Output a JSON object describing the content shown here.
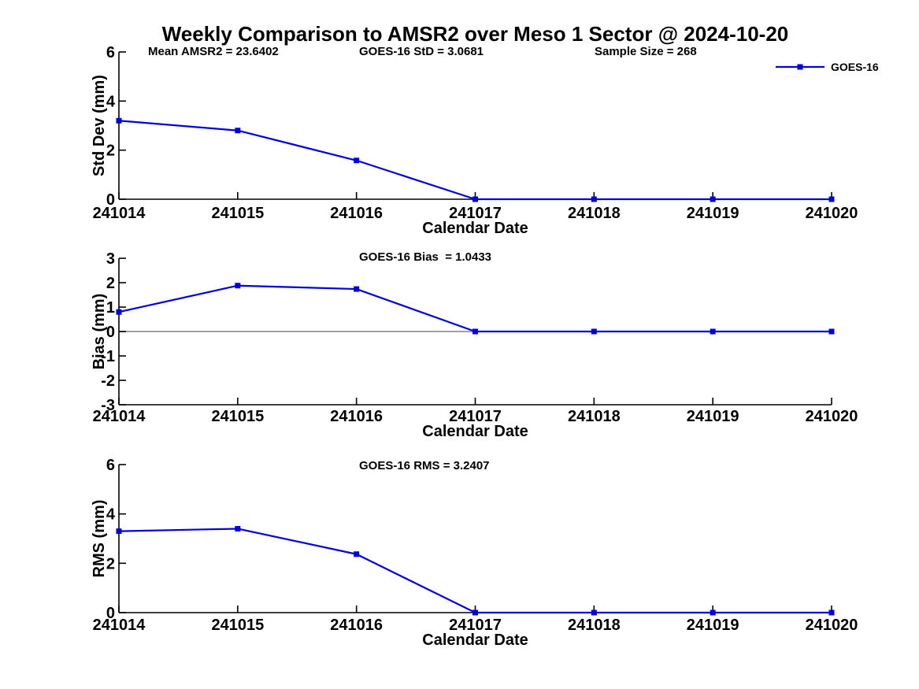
{
  "title": "Weekly Comparison to AMSR2 over Meso 1 Sector @ 2024-10-20",
  "colors": {
    "series": "#0000DD",
    "axis": "#000000",
    "zero_line": "#808080",
    "background": "#ffffff",
    "text": "#000000"
  },
  "legend": {
    "label": "GOES-16",
    "position": "top-right",
    "marker": "filled-square"
  },
  "chart_data": [
    {
      "type": "line",
      "name": "std-dev",
      "categories": [
        "241014",
        "241015",
        "241016",
        "241017",
        "241018",
        "241019",
        "241020"
      ],
      "series": [
        {
          "name": "GOES-16",
          "color": "#0000DD",
          "marker": "square",
          "values": [
            3.2,
            2.8,
            1.58,
            0,
            0,
            0,
            0
          ]
        }
      ],
      "xlabel": "Calendar Date",
      "ylabel": "Std Dev (mm)",
      "ylim": [
        0,
        6
      ],
      "yticks": [
        0,
        2,
        4,
        6
      ],
      "grid": false,
      "legend_shown": true,
      "annotations": [
        "Mean AMSR2 = 23.6402",
        "GOES-16 StD = 3.0681",
        "Sample Size = 268"
      ]
    },
    {
      "type": "line",
      "name": "bias",
      "categories": [
        "241014",
        "241015",
        "241016",
        "241017",
        "241018",
        "241019",
        "241020"
      ],
      "series": [
        {
          "name": "GOES-16",
          "color": "#0000DD",
          "marker": "square",
          "values": [
            0.8,
            1.88,
            1.74,
            0,
            0,
            0,
            0
          ]
        }
      ],
      "xlabel": "Calendar Date",
      "ylabel": "Bias (mm)",
      "ylim": [
        -3,
        3
      ],
      "yticks": [
        3,
        2,
        1,
        0,
        -1,
        -2,
        -3
      ],
      "grid": false,
      "legend_shown": false,
      "zero_line": true,
      "annotations": [
        "GOES-16 Bias  = 1.0433"
      ]
    },
    {
      "type": "line",
      "name": "rms",
      "categories": [
        "241014",
        "241015",
        "241016",
        "241017",
        "241018",
        "241019",
        "241020"
      ],
      "series": [
        {
          "name": "GOES-16",
          "color": "#0000DD",
          "marker": "square",
          "values": [
            3.3,
            3.4,
            2.37,
            0,
            0,
            0,
            0
          ]
        }
      ],
      "xlabel": "Calendar Date",
      "ylabel": "RMS (mm)",
      "ylim": [
        0,
        6
      ],
      "yticks": [
        0,
        2,
        4,
        6
      ],
      "grid": false,
      "legend_shown": false,
      "annotations": [
        "GOES-16 RMS = 3.2407"
      ]
    }
  ]
}
